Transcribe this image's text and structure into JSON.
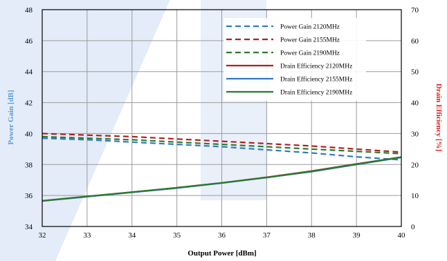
{
  "chart_data": {
    "type": "line",
    "xlabel": "Output Power [dBm]",
    "ylabel_left": "Power Gain [dB]",
    "ylabel_right": "Drain Efficiency [%]",
    "xlim": [
      32,
      40
    ],
    "ylim_left": [
      34,
      48
    ],
    "ylim_right": [
      0,
      70
    ],
    "x_ticks": [
      32,
      33,
      34,
      35,
      36,
      37,
      38,
      39,
      40
    ],
    "y_ticks_left": [
      34,
      36,
      38,
      40,
      42,
      44,
      46,
      48
    ],
    "y_ticks_right": [
      0,
      10,
      20,
      30,
      40,
      50,
      60,
      70
    ],
    "grid": true,
    "legend_position": "top-right",
    "colors": {
      "blue": "#2e78c8",
      "red": "#b01f1f",
      "green": "#2a7a2a",
      "ylabel_left": "#5b9bd5",
      "ylabel_right": "#e02020",
      "watermark": "#e3ecf8"
    },
    "x": [
      32,
      33,
      34,
      35,
      36,
      37,
      38,
      39,
      40
    ],
    "series": [
      {
        "name": "Power Gain 2120MHz",
        "axis": "left",
        "style": "dashed",
        "color": "#2e78c8",
        "values": [
          39.7,
          39.6,
          39.45,
          39.3,
          39.15,
          38.95,
          38.75,
          38.5,
          38.3
        ]
      },
      {
        "name": "Power Gain 2155MHz",
        "axis": "left",
        "style": "dashed",
        "color": "#b01f1f",
        "values": [
          40.0,
          39.9,
          39.8,
          39.65,
          39.5,
          39.35,
          39.2,
          39.0,
          38.8
        ]
      },
      {
        "name": "Power Gain 2190MHz",
        "axis": "left",
        "style": "dashed",
        "color": "#2a7a2a",
        "values": [
          39.8,
          39.7,
          39.6,
          39.45,
          39.3,
          39.15,
          39.0,
          38.85,
          38.7
        ]
      },
      {
        "name": "Drain Efficiency 2120MHz",
        "axis": "right",
        "style": "solid",
        "color": "#b01f1f",
        "values": [
          8.3,
          9.7,
          11.1,
          12.5,
          14.1,
          15.9,
          17.9,
          20.2,
          22.4
        ]
      },
      {
        "name": "Drain Efficiency 2155MHz",
        "axis": "right",
        "style": "solid",
        "color": "#2e78c8",
        "values": [
          8.2,
          9.6,
          11.0,
          12.4,
          14.0,
          15.8,
          17.7,
          20.0,
          22.3
        ]
      },
      {
        "name": "Drain Efficiency 2190MHz",
        "axis": "right",
        "style": "solid",
        "color": "#2a7a2a",
        "values": [
          8.3,
          9.7,
          11.1,
          12.5,
          14.1,
          15.8,
          17.8,
          20.1,
          22.4
        ]
      }
    ]
  }
}
